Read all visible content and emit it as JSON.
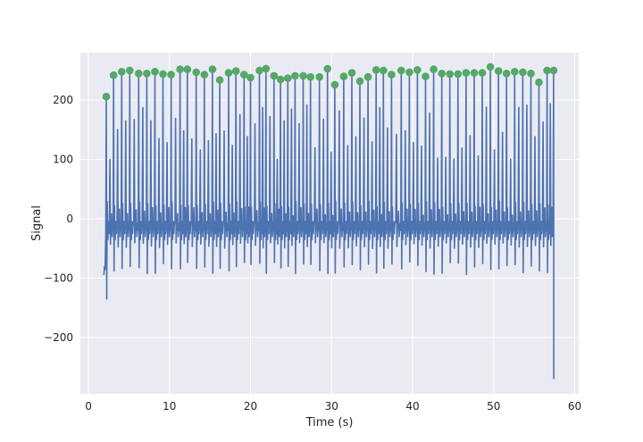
{
  "chart_data": {
    "type": "line",
    "title": "",
    "xlabel": "Time (s)",
    "ylabel": "Signal",
    "xlim": [
      -1,
      60.5
    ],
    "ylim": [
      -295,
      280
    ],
    "xticks": [
      0,
      10,
      20,
      30,
      40,
      50,
      60
    ],
    "xtick_labels": [
      "0",
      "10",
      "20",
      "30",
      "40",
      "50",
      "60"
    ],
    "yticks": [
      -200,
      -100,
      0,
      100,
      200
    ],
    "ytick_labels": [
      "−200",
      "−100",
      "0",
      "100",
      "200"
    ],
    "grid": true,
    "background": "#eaeaf2",
    "colors": {
      "signal": "#4c72b0",
      "peaks": "#55a868",
      "grid": "#ffffff"
    },
    "signal_range": {
      "start": 1.9,
      "end": 57.5,
      "initial": -95,
      "final": -270
    },
    "peaks": {
      "x": [
        2.2,
        3.1,
        4.1,
        5.1,
        6.2,
        7.2,
        8.2,
        9.2,
        10.2,
        11.3,
        12.2,
        13.3,
        14.3,
        15.3,
        16.2,
        17.3,
        18.2,
        19.2,
        20.0,
        21.1,
        21.9,
        22.9,
        23.7,
        24.6,
        25.5,
        26.5,
        27.4,
        28.5,
        29.5,
        30.4,
        31.5,
        32.5,
        33.5,
        34.5,
        35.5,
        36.4,
        37.4,
        38.6,
        39.6,
        40.6,
        41.6,
        42.6,
        43.6,
        44.6,
        45.6,
        46.6,
        47.6,
        48.6,
        49.6,
        50.6,
        51.6,
        52.6,
        53.6,
        54.6,
        55.6,
        56.6,
        57.4
      ],
      "y": [
        206,
        242,
        248,
        250,
        245,
        245,
        248,
        244,
        243,
        252,
        252,
        247,
        243,
        252,
        234,
        246,
        249,
        243,
        238,
        250,
        253,
        241,
        235,
        237,
        241,
        241,
        239,
        239,
        253,
        226,
        240,
        246,
        232,
        239,
        251,
        250,
        243,
        250,
        247,
        251,
        240,
        252,
        245,
        244,
        244,
        246,
        246,
        246,
        256,
        249,
        245,
        248,
        247,
        245,
        230,
        250,
        250
      ]
    }
  }
}
